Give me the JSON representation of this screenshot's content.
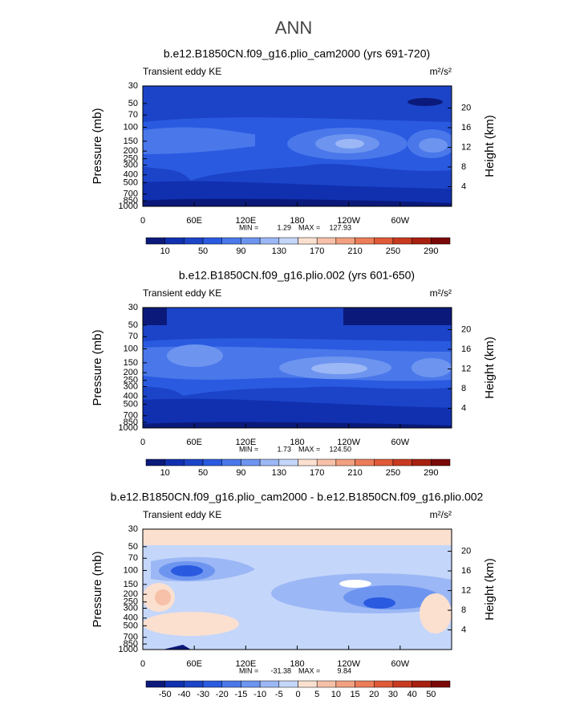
{
  "title": "ANN",
  "chart_data": [
    {
      "type": "contour",
      "title": "b.e12.B1850CN.f09_g16.plio_cam2000 (yrs 691-720)",
      "subtitle": "Transient eddy KE",
      "units": "m²/s²",
      "ylabel": "Pressure (mb)",
      "y2label": "Height (km)",
      "ylog": true,
      "ylim": [
        1000,
        30
      ],
      "yticks": [
        30,
        50,
        70,
        100,
        150,
        200,
        250,
        300,
        400,
        500,
        700,
        850,
        1000
      ],
      "y2lim": [
        0,
        24.5
      ],
      "y2ticks": [
        4,
        8,
        12,
        16,
        20
      ],
      "xlim": [
        0,
        360
      ],
      "xticks": [
        0,
        {
          "value": 60,
          "label": "60E"
        },
        {
          "value": 120,
          "label": "120E"
        },
        180,
        {
          "value": 240,
          "label": "120W"
        },
        {
          "value": 300,
          "label": "60W"
        }
      ],
      "min_label": "MIN =",
      "min": {
        "value": 1.29,
        "label": "1.29"
      },
      "max_label": "MAX =",
      "max": {
        "value": 127.93,
        "label": "127.93"
      },
      "colorbar": {
        "ticks": [
          10,
          50,
          90,
          130,
          170,
          210,
          250,
          290
        ],
        "colors": [
          "#0b1a7a",
          "#1030b0",
          "#1c44c8",
          "#2a5ae0",
          "#4a78ea",
          "#6d95f0",
          "#9cb7f5",
          "#c4d6fa",
          "#fbe0d0",
          "#f7c0a8",
          "#f2a080",
          "#ec7d58",
          "#e05a38",
          "#c83a20",
          "#a82010",
          "#7a0808"
        ]
      }
    },
    {
      "type": "contour",
      "title": "b.e12.B1850CN.f09_g16.plio.002 (yrs 601-650)",
      "subtitle": "Transient eddy KE",
      "units": "m²/s²",
      "ylabel": "Pressure (mb)",
      "y2label": "Height (km)",
      "ylog": true,
      "ylim": [
        1000,
        30
      ],
      "yticks": [
        30,
        50,
        70,
        100,
        150,
        200,
        250,
        300,
        400,
        500,
        700,
        850,
        1000
      ],
      "y2lim": [
        0,
        24.5
      ],
      "y2ticks": [
        4,
        8,
        12,
        16,
        20
      ],
      "xlim": [
        0,
        360
      ],
      "xticks": [
        0,
        {
          "value": 60,
          "label": "60E"
        },
        {
          "value": 120,
          "label": "120E"
        },
        180,
        {
          "value": 240,
          "label": "120W"
        },
        {
          "value": 300,
          "label": "60W"
        }
      ],
      "min_label": "MIN =",
      "min": {
        "value": 1.73,
        "label": "1.73"
      },
      "max_label": "MAX =",
      "max": {
        "value": 124.5,
        "label": "124.50"
      },
      "colorbar": {
        "ticks": [
          10,
          50,
          90,
          130,
          170,
          210,
          250,
          290
        ],
        "colors": [
          "#0b1a7a",
          "#1030b0",
          "#1c44c8",
          "#2a5ae0",
          "#4a78ea",
          "#6d95f0",
          "#9cb7f5",
          "#c4d6fa",
          "#fbe0d0",
          "#f7c0a8",
          "#f2a080",
          "#ec7d58",
          "#e05a38",
          "#c83a20",
          "#a82010",
          "#7a0808"
        ]
      }
    },
    {
      "type": "contour",
      "title": "b.e12.B1850CN.f09_g16.plio_cam2000 - b.e12.B1850CN.f09_g16.plio.002",
      "subtitle": "Transient eddy KE",
      "units": "m²/s²",
      "ylabel": "Pressure (mb)",
      "y2label": "Height (km)",
      "ylog": true,
      "ylim": [
        1000,
        30
      ],
      "yticks": [
        30,
        50,
        70,
        100,
        150,
        200,
        250,
        300,
        400,
        500,
        700,
        850,
        1000
      ],
      "y2lim": [
        0,
        24.5
      ],
      "y2ticks": [
        4,
        8,
        12,
        16,
        20
      ],
      "xlim": [
        0,
        360
      ],
      "xticks": [
        0,
        {
          "value": 60,
          "label": "60E"
        },
        {
          "value": 120,
          "label": "120E"
        },
        180,
        {
          "value": 240,
          "label": "120W"
        },
        {
          "value": 300,
          "label": "60W"
        }
      ],
      "min_label": "MIN =",
      "min": {
        "value": -31.38,
        "label": "-31.38"
      },
      "max_label": "MAX =",
      "max": {
        "value": 9.84,
        "label": "9.84"
      },
      "colorbar": {
        "ticks": [
          -50,
          -40,
          -30,
          -20,
          -15,
          -10,
          -5,
          0,
          5,
          10,
          15,
          20,
          30,
          40,
          50
        ],
        "colors": [
          "#0b1a7a",
          "#1030b0",
          "#1c44c8",
          "#2a5ae0",
          "#4a78ea",
          "#6d95f0",
          "#9cb7f5",
          "#c4d6fa",
          "#fbe0d0",
          "#f7c0a8",
          "#f2a080",
          "#ec7d58",
          "#e05a38",
          "#c83a20",
          "#a82010",
          "#7a0808"
        ]
      }
    }
  ]
}
